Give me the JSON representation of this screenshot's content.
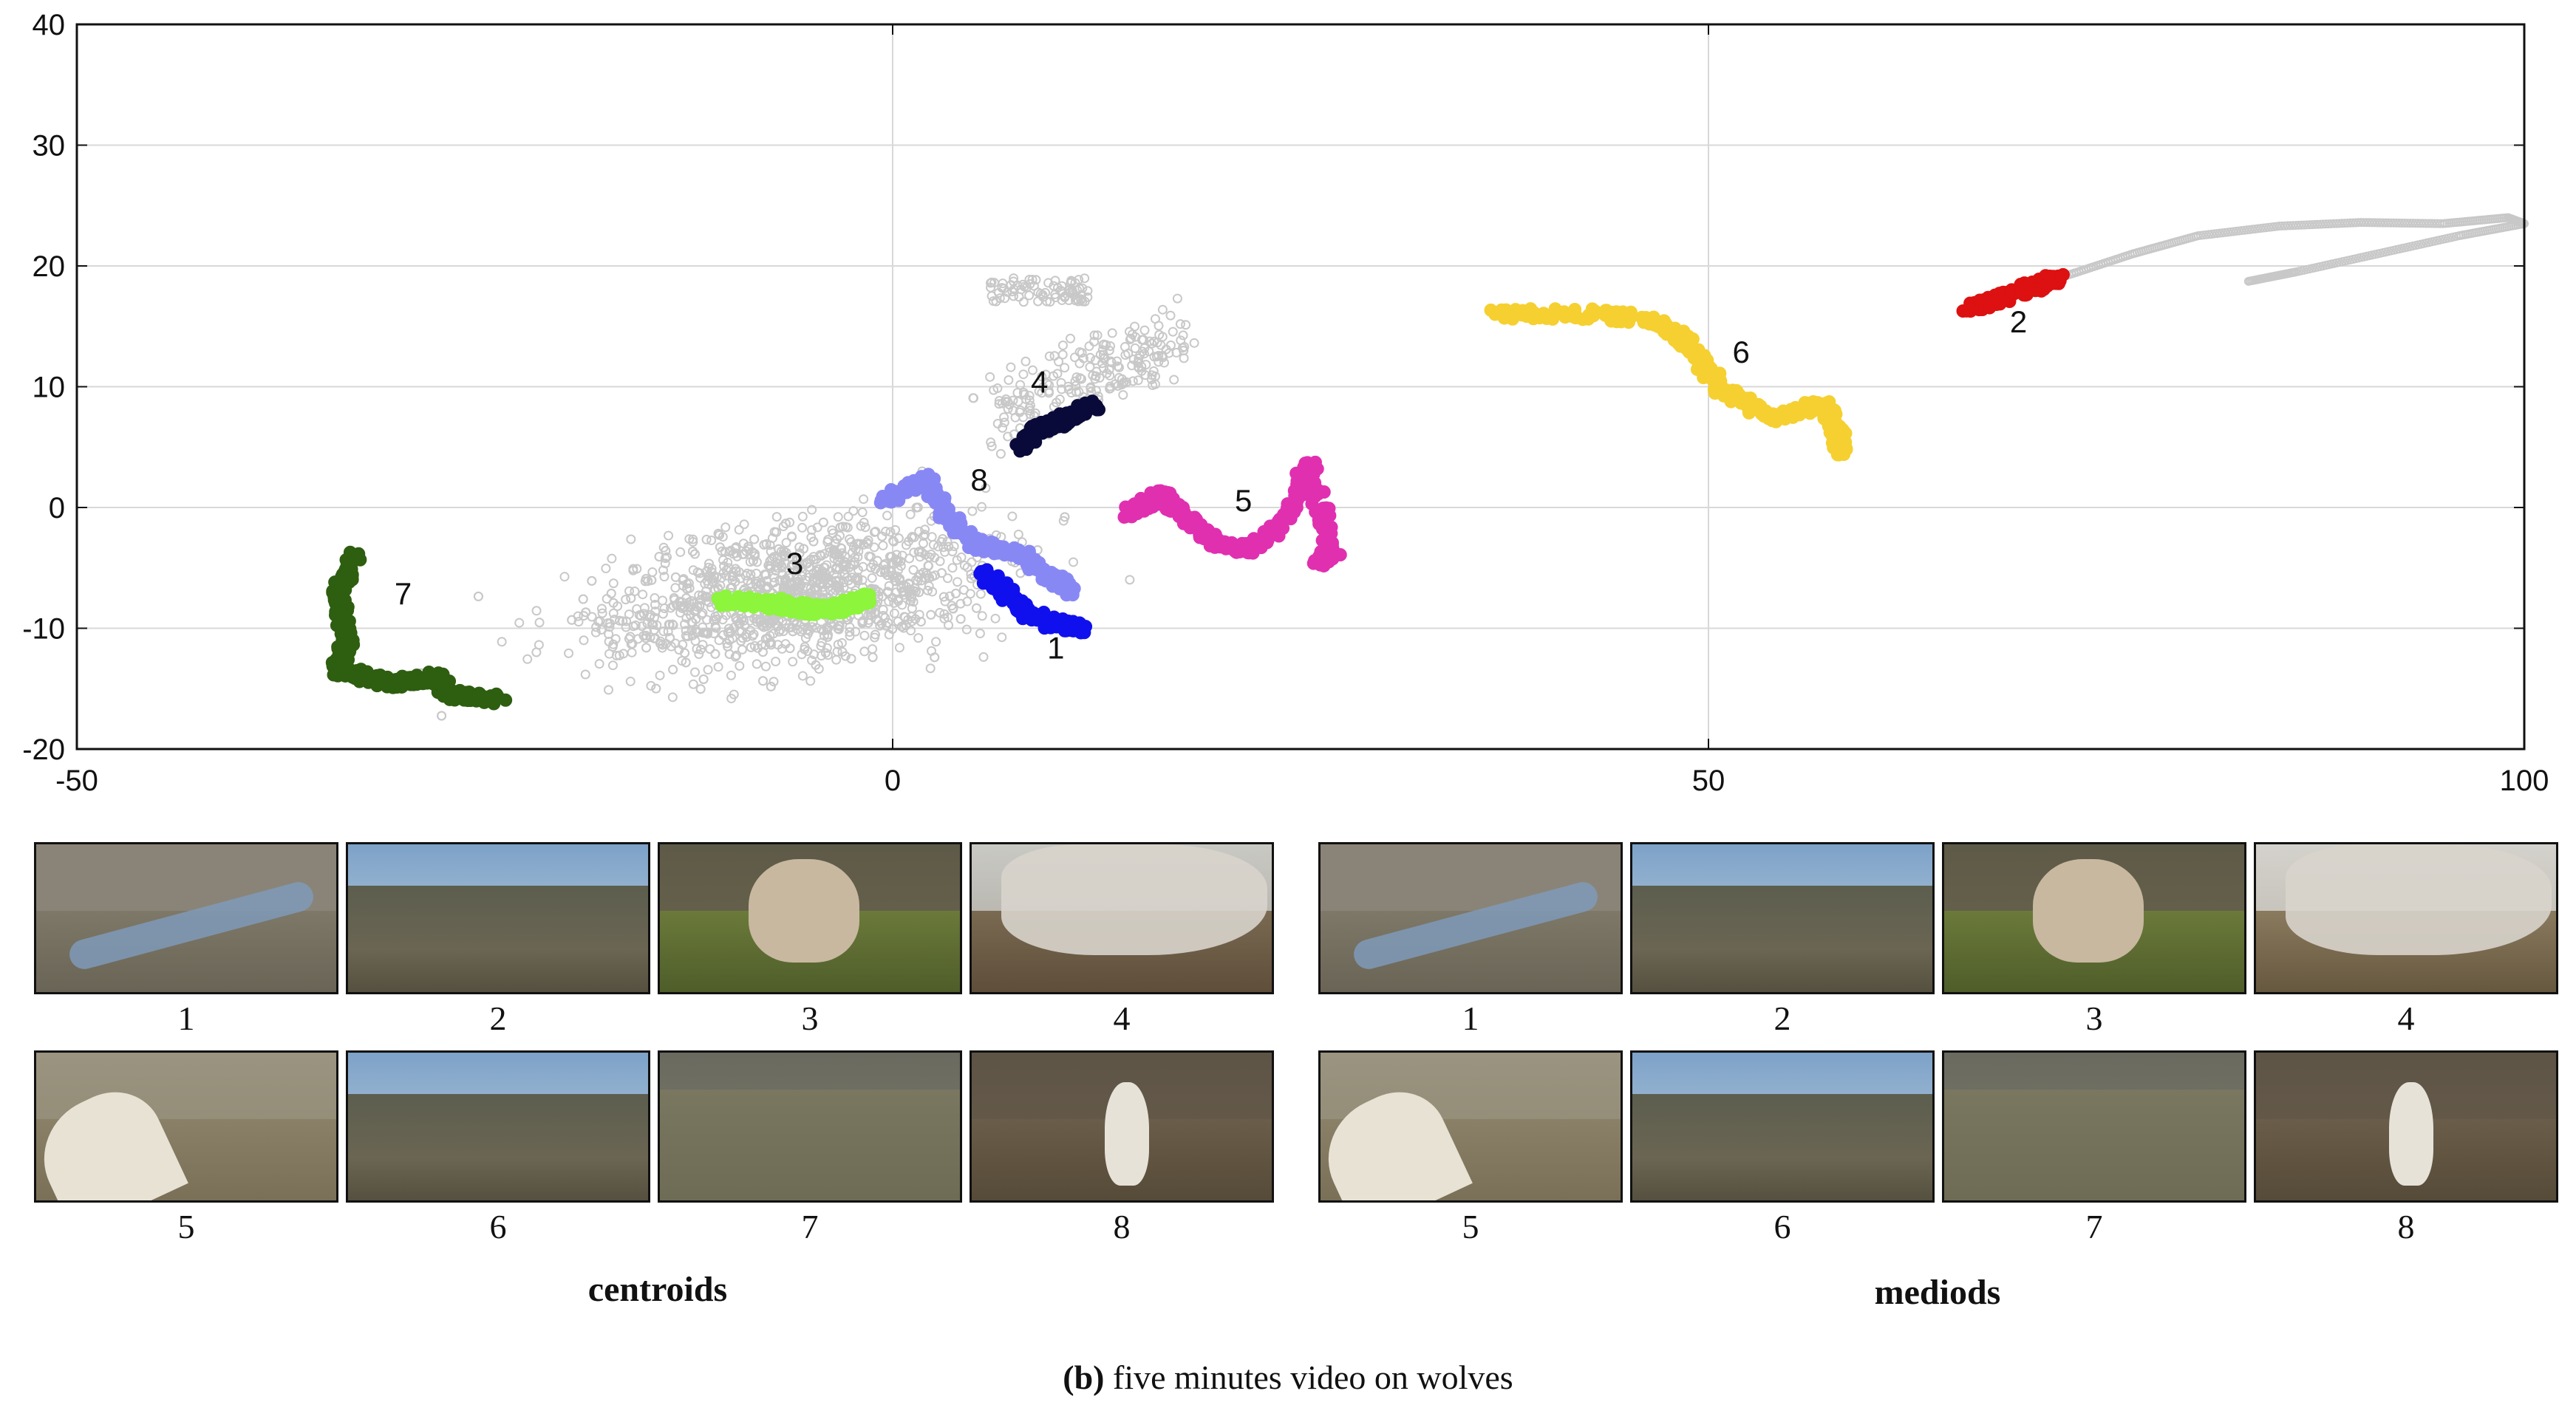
{
  "chart_data": {
    "type": "scatter",
    "xlim": [
      -50,
      100
    ],
    "ylim": [
      -20,
      40
    ],
    "x_ticks": [
      -50,
      0,
      50,
      100
    ],
    "y_ticks": [
      -20,
      -10,
      0,
      10,
      20,
      30,
      40
    ],
    "grid": "major lines at x=0 and x=50; horizontal lines at y ticks",
    "clusters": [
      {
        "label": "1",
        "color": "#1010ee",
        "path": [
          [
            5.5,
            -5.5
          ],
          [
            7,
            -7
          ],
          [
            8,
            -8.5
          ],
          [
            9.5,
            -9.5
          ],
          [
            11.5,
            -10
          ]
        ],
        "label_pos": [
          10,
          -12.5
        ]
      },
      {
        "label": "2",
        "color": "#dd1111",
        "path": [
          [
            66,
            16.5
          ],
          [
            68,
            17.3
          ],
          [
            70,
            18.3
          ],
          [
            71.5,
            19
          ]
        ],
        "label_pos": [
          69,
          14.5
        ]
      },
      {
        "label": "3",
        "color": "#8cf53c",
        "path": [
          [
            -10.5,
            -7.7
          ],
          [
            -7,
            -8
          ],
          [
            -5,
            -8.5
          ],
          [
            -3,
            -8.3
          ],
          [
            -1.5,
            -7.5
          ]
        ],
        "label_pos": [
          -6,
          -5.5
        ]
      },
      {
        "label": "4",
        "color": "#0a0a3a",
        "path": [
          [
            8,
            5
          ],
          [
            9,
            6.5
          ],
          [
            10,
            7
          ],
          [
            11,
            7.5
          ],
          [
            12.5,
            8.5
          ]
        ],
        "label_pos": [
          9,
          9.5
        ]
      },
      {
        "label": "5",
        "color": "#e030b0",
        "path": [
          [
            14.5,
            -0.5
          ],
          [
            16.5,
            1
          ],
          [
            18,
            -1
          ],
          [
            20,
            -3
          ],
          [
            22,
            -3.5
          ],
          [
            24,
            -1
          ],
          [
            25.5,
            3.5
          ],
          [
            27,
            -3.5
          ],
          [
            26,
            -4.5
          ]
        ],
        "label_pos": [
          21.5,
          -0.3
        ]
      },
      {
        "label": "6",
        "color": "#f5d030",
        "path": [
          [
            37,
            16
          ],
          [
            43,
            16
          ],
          [
            47,
            15.5
          ],
          [
            49,
            13
          ],
          [
            51,
            9.5
          ],
          [
            54,
            7.5
          ],
          [
            57,
            8.5
          ],
          [
            58,
            6
          ],
          [
            58,
            4.5
          ]
        ],
        "label_pos": [
          52,
          12
        ]
      },
      {
        "label": "7",
        "color": "#2e5e10",
        "path": [
          [
            -33,
            -4
          ],
          [
            -34,
            -7
          ],
          [
            -33.5,
            -11
          ],
          [
            -34,
            -13.5
          ],
          [
            -31,
            -14.5
          ],
          [
            -28,
            -14
          ],
          [
            -27,
            -15.5
          ],
          [
            -24,
            -16
          ]
        ],
        "label_pos": [
          -30,
          -8
        ]
      },
      {
        "label": "8",
        "color": "#8888f5",
        "path": [
          [
            -0.5,
            0.5
          ],
          [
            2,
            2.5
          ],
          [
            3.5,
            -1
          ],
          [
            5,
            -3
          ],
          [
            8,
            -4
          ],
          [
            10,
            -6
          ],
          [
            11,
            -7
          ]
        ],
        "label_pos": [
          5.3,
          1.4
        ]
      }
    ],
    "background_points": "grey trajectory of all frames"
  },
  "thumbnails": {
    "centroids": {
      "title": "centroids",
      "items": [
        {
          "label": "1",
          "scene": "river"
        },
        {
          "label": "2",
          "scene": "plain-sky"
        },
        {
          "label": "3",
          "scene": "wolf-pup"
        },
        {
          "label": "4",
          "scene": "wolf-close"
        },
        {
          "label": "5",
          "scene": "howling-wolf"
        },
        {
          "label": "6",
          "scene": "plain-sky"
        },
        {
          "label": "7",
          "scene": "flat-plain"
        },
        {
          "label": "8",
          "scene": "hare"
        }
      ]
    },
    "mediods": {
      "title": "mediods",
      "items": [
        {
          "label": "1",
          "scene": "river"
        },
        {
          "label": "2",
          "scene": "plain-sky"
        },
        {
          "label": "3",
          "scene": "wolf-pup"
        },
        {
          "label": "4",
          "scene": "wolf-legs"
        },
        {
          "label": "5",
          "scene": "howling-wolf"
        },
        {
          "label": "6",
          "scene": "plain-sky"
        },
        {
          "label": "7",
          "scene": "flat-plain"
        },
        {
          "label": "8",
          "scene": "hare"
        }
      ]
    }
  },
  "caption": {
    "prefix": "(b)",
    "text": " five minutes video on wolves"
  }
}
